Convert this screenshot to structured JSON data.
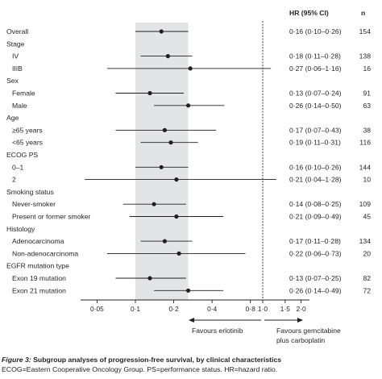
{
  "chart_data": {
    "type": "forest",
    "columns": {
      "hr_header": "HR (95% CI)",
      "n_header": "n"
    },
    "x_axis": {
      "scale": "log",
      "ticks": [
        "0·05",
        "0·1",
        "0·2",
        "0·4",
        "0·8",
        "1·0",
        "1·5",
        "2·0"
      ],
      "range": [
        0.035,
        2.4
      ],
      "reference_line": 1.0
    },
    "shaded_band": [
      0.1,
      0.26
    ],
    "rows": [
      {
        "label": "Overall",
        "kind": "item",
        "indent": false,
        "hr": 0.16,
        "lo": 0.1,
        "hi": 0.26,
        "text": "0·16 (0·10–0·26)",
        "n": "154"
      },
      {
        "label": "Stage",
        "kind": "header"
      },
      {
        "label": "IV",
        "kind": "item",
        "indent": true,
        "hr": 0.18,
        "lo": 0.11,
        "hi": 0.28,
        "text": "0·18 (0·11–0·28)",
        "n": "138"
      },
      {
        "label": "IIIB",
        "kind": "item",
        "indent": true,
        "hr": 0.27,
        "lo": 0.06,
        "hi": 1.16,
        "text": "0·27 (0·06–1·16)",
        "n": "16"
      },
      {
        "label": "Sex",
        "kind": "header"
      },
      {
        "label": "Female",
        "kind": "item",
        "indent": true,
        "hr": 0.13,
        "lo": 0.07,
        "hi": 0.24,
        "text": "0·13 (0·07–0·24)",
        "n": "91"
      },
      {
        "label": "Male",
        "kind": "item",
        "indent": true,
        "hr": 0.26,
        "lo": 0.14,
        "hi": 0.5,
        "text": "0·26 (0·14–0·50)",
        "n": "63"
      },
      {
        "label": "Age",
        "kind": "header"
      },
      {
        "label": "≥65 years",
        "kind": "item",
        "indent": true,
        "hr": 0.17,
        "lo": 0.07,
        "hi": 0.43,
        "text": "0·17 (0·07–0·43)",
        "n": "38"
      },
      {
        "label": "<65 years",
        "kind": "item",
        "indent": true,
        "hr": 0.19,
        "lo": 0.11,
        "hi": 0.31,
        "text": "0·19 (0·11–0·31)",
        "n": "116"
      },
      {
        "label": "ECOG PS",
        "kind": "header"
      },
      {
        "label": "0–1",
        "kind": "item",
        "indent": true,
        "hr": 0.16,
        "lo": 0.1,
        "hi": 0.26,
        "text": "0·16 (0·10–0·26)",
        "n": "144"
      },
      {
        "label": "2",
        "kind": "item",
        "indent": true,
        "hr": 0.21,
        "lo": 0.04,
        "hi": 1.28,
        "text": "0·21 (0·04–1·28)",
        "n": "10"
      },
      {
        "label": "Smoking status",
        "kind": "header"
      },
      {
        "label": "Never-smoker",
        "kind": "item",
        "indent": true,
        "hr": 0.14,
        "lo": 0.08,
        "hi": 0.25,
        "text": "0·14 (0·08–0·25)",
        "n": "109"
      },
      {
        "label": "Present or former smoker",
        "kind": "item",
        "indent": true,
        "hr": 0.21,
        "lo": 0.09,
        "hi": 0.49,
        "text": "0·21 (0·09–0·49)",
        "n": "45"
      },
      {
        "label": "Histology",
        "kind": "header"
      },
      {
        "label": "Adenocarcinoma",
        "kind": "item",
        "indent": true,
        "hr": 0.17,
        "lo": 0.11,
        "hi": 0.28,
        "text": "0·17 (0·11–0·28)",
        "n": "134"
      },
      {
        "label": "Non-adenocarcinoma",
        "kind": "item",
        "indent": true,
        "hr": 0.22,
        "lo": 0.06,
        "hi": 0.73,
        "text": "0·22 (0·06–0·73)",
        "n": "20"
      },
      {
        "label": "EGFR mutation type",
        "kind": "header"
      },
      {
        "label": "Exon 19 mutation",
        "kind": "item",
        "indent": true,
        "hr": 0.13,
        "lo": 0.07,
        "hi": 0.25,
        "text": "0·13 (0·07–0·25)",
        "n": "82"
      },
      {
        "label": "Exon 21 mutation",
        "kind": "item",
        "indent": true,
        "hr": 0.26,
        "lo": 0.14,
        "hi": 0.49,
        "text": "0·26 (0·14–0·49)",
        "n": "72"
      }
    ],
    "favours_left": "Favours erlotinib",
    "favours_right_line1": "Favours gemcitabine",
    "favours_right_line2": "plus carboplatin"
  },
  "caption": {
    "figure_label": "Figure 3:",
    "title": " Subgroup analyses of progression-free survival, by clinical characteristics",
    "note": "ECOG=Eastern Cooperative Oncology Group. PS=performance status. HR=hazard ratio."
  }
}
